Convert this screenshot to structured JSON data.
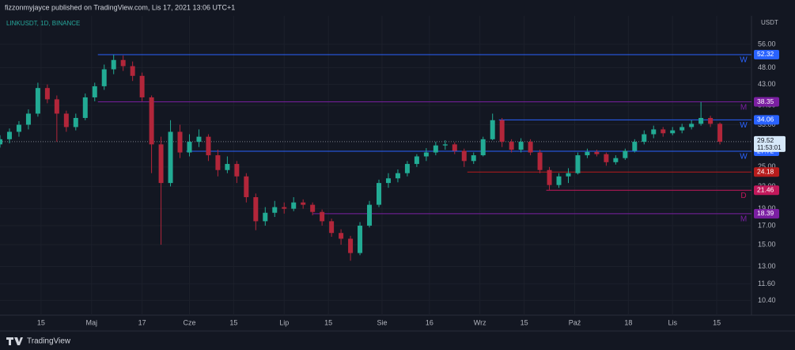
{
  "header": "fizzonmyjayce published on TradingView.com, Lis 17, 2021 13:06 UTC+1",
  "brand": "TradingView",
  "chart_data": {
    "type": "candlestick",
    "symbol": "LINKUSDT, 1D, BINANCE",
    "currency": "USDT",
    "log_scale": true,
    "grid": true,
    "up_color": "#22ab94",
    "down_color": "#b2263a",
    "xlim": [
      1,
      239
    ],
    "ylim": [
      9.44,
      67.5
    ],
    "xticks": [
      {
        "value": 14,
        "label": "15"
      },
      {
        "value": 30,
        "label": "Maj"
      },
      {
        "value": 46,
        "label": "17"
      },
      {
        "value": 61,
        "label": "Cze"
      },
      {
        "value": 75,
        "label": "15"
      },
      {
        "value": 91,
        "label": "Lip"
      },
      {
        "value": 105,
        "label": "15"
      },
      {
        "value": 122,
        "label": "Sie"
      },
      {
        "value": 137,
        "label": "16"
      },
      {
        "value": 153,
        "label": "Wrz"
      },
      {
        "value": 167,
        "label": "15"
      },
      {
        "value": 183,
        "label": "Paź"
      },
      {
        "value": 200,
        "label": "18"
      },
      {
        "value": 214,
        "label": "Lis"
      },
      {
        "value": 228,
        "label": "15"
      }
    ],
    "yticks": [
      {
        "value": 56,
        "label": "56.00"
      },
      {
        "value": 48,
        "label": "48.00"
      },
      {
        "value": 43,
        "label": "43.00"
      },
      {
        "value": 37.5,
        "label": "37.50"
      },
      {
        "value": 33,
        "label": "33.00"
      },
      {
        "value": 25,
        "label": "25.00"
      },
      {
        "value": 22,
        "label": "22.00"
      },
      {
        "value": 19,
        "label": "19.00"
      },
      {
        "value": 17,
        "label": "17.00"
      },
      {
        "value": 15,
        "label": "15.00"
      },
      {
        "value": 13,
        "label": "13.00"
      },
      {
        "value": 11.6,
        "label": "11.60"
      },
      {
        "value": 10.4,
        "label": "10.40"
      }
    ],
    "candles": [
      {
        "x": 1,
        "open": 29.0,
        "high": 30.8,
        "low": 28.4,
        "close": 30.0
      },
      {
        "x": 4,
        "open": 30.0,
        "high": 32.2,
        "low": 29.2,
        "close": 31.5
      },
      {
        "x": 7,
        "open": 31.5,
        "high": 33.8,
        "low": 30.5,
        "close": 33.0
      },
      {
        "x": 10,
        "open": 33.0,
        "high": 36.5,
        "low": 32.0,
        "close": 35.5
      },
      {
        "x": 13,
        "open": 35.5,
        "high": 43.5,
        "low": 34.8,
        "close": 42.0
      },
      {
        "x": 16,
        "open": 42.0,
        "high": 43.0,
        "low": 38.0,
        "close": 39.0
      },
      {
        "x": 19,
        "open": 39.0,
        "high": 40.0,
        "low": 29.5,
        "close": 35.5
      },
      {
        "x": 22,
        "open": 35.5,
        "high": 36.2,
        "low": 31.5,
        "close": 32.5
      },
      {
        "x": 25,
        "open": 32.5,
        "high": 35.5,
        "low": 31.8,
        "close": 34.5
      },
      {
        "x": 28,
        "open": 34.5,
        "high": 40.5,
        "low": 34.0,
        "close": 39.5
      },
      {
        "x": 31,
        "open": 39.5,
        "high": 43.5,
        "low": 38.5,
        "close": 42.5
      },
      {
        "x": 34,
        "open": 42.5,
        "high": 49.0,
        "low": 41.5,
        "close": 47.5
      },
      {
        "x": 37,
        "open": 47.5,
        "high": 52.3,
        "low": 46.0,
        "close": 50.5
      },
      {
        "x": 40,
        "open": 50.5,
        "high": 52.0,
        "low": 47.0,
        "close": 48.5
      },
      {
        "x": 43,
        "open": 48.5,
        "high": 50.0,
        "low": 44.0,
        "close": 45.5
      },
      {
        "x": 46,
        "open": 45.5,
        "high": 46.5,
        "low": 38.5,
        "close": 39.5
      },
      {
        "x": 49,
        "open": 39.5,
        "high": 40.0,
        "low": 24.0,
        "close": 29.0
      },
      {
        "x": 52,
        "open": 29.0,
        "high": 30.5,
        "low": 15.0,
        "close": 22.5
      },
      {
        "x": 55,
        "open": 22.5,
        "high": 34.0,
        "low": 22.0,
        "close": 31.5
      },
      {
        "x": 58,
        "open": 31.5,
        "high": 33.0,
        "low": 26.5,
        "close": 27.5
      },
      {
        "x": 61,
        "open": 27.5,
        "high": 31.0,
        "low": 26.8,
        "close": 29.5
      },
      {
        "x": 64,
        "open": 29.5,
        "high": 32.0,
        "low": 28.5,
        "close": 30.5
      },
      {
        "x": 67,
        "open": 30.5,
        "high": 31.0,
        "low": 26.0,
        "close": 27.0
      },
      {
        "x": 70,
        "open": 27.0,
        "high": 28.0,
        "low": 23.5,
        "close": 24.5
      },
      {
        "x": 73,
        "open": 24.5,
        "high": 26.8,
        "low": 24.0,
        "close": 25.5
      },
      {
        "x": 76,
        "open": 25.5,
        "high": 26.0,
        "low": 22.5,
        "close": 23.5
      },
      {
        "x": 79,
        "open": 23.5,
        "high": 24.0,
        "low": 19.8,
        "close": 20.5
      },
      {
        "x": 82,
        "open": 20.5,
        "high": 21.0,
        "low": 16.5,
        "close": 17.5
      },
      {
        "x": 85,
        "open": 17.5,
        "high": 19.2,
        "low": 17.0,
        "close": 18.5
      },
      {
        "x": 88,
        "open": 18.5,
        "high": 20.0,
        "low": 18.0,
        "close": 19.2
      },
      {
        "x": 91,
        "open": 19.2,
        "high": 19.8,
        "low": 18.4,
        "close": 19.0
      },
      {
        "x": 94,
        "open": 19.0,
        "high": 20.5,
        "low": 18.7,
        "close": 19.8
      },
      {
        "x": 97,
        "open": 19.8,
        "high": 20.2,
        "low": 19.0,
        "close": 19.5
      },
      {
        "x": 100,
        "open": 19.5,
        "high": 19.8,
        "low": 18.2,
        "close": 18.6
      },
      {
        "x": 103,
        "open": 18.6,
        "high": 18.9,
        "low": 17.0,
        "close": 17.5
      },
      {
        "x": 106,
        "open": 17.5,
        "high": 17.8,
        "low": 15.8,
        "close": 16.2
      },
      {
        "x": 109,
        "open": 16.2,
        "high": 16.6,
        "low": 15.0,
        "close": 15.6
      },
      {
        "x": 112,
        "open": 15.6,
        "high": 15.9,
        "low": 13.5,
        "close": 14.2
      },
      {
        "x": 115,
        "open": 14.2,
        "high": 17.4,
        "low": 14.0,
        "close": 17.0
      },
      {
        "x": 118,
        "open": 17.0,
        "high": 20.0,
        "low": 16.8,
        "close": 19.5
      },
      {
        "x": 121,
        "open": 19.5,
        "high": 23.0,
        "low": 19.2,
        "close": 22.5
      },
      {
        "x": 124,
        "open": 22.5,
        "high": 24.0,
        "low": 21.8,
        "close": 23.2
      },
      {
        "x": 127,
        "open": 23.2,
        "high": 24.6,
        "low": 22.6,
        "close": 24.0
      },
      {
        "x": 130,
        "open": 24.0,
        "high": 26.0,
        "low": 23.5,
        "close": 25.5
      },
      {
        "x": 133,
        "open": 25.5,
        "high": 27.2,
        "low": 25.0,
        "close": 26.8
      },
      {
        "x": 136,
        "open": 26.8,
        "high": 28.3,
        "low": 26.0,
        "close": 27.5
      },
      {
        "x": 139,
        "open": 27.5,
        "high": 29.5,
        "low": 27.0,
        "close": 28.8
      },
      {
        "x": 142,
        "open": 28.8,
        "high": 29.8,
        "low": 28.0,
        "close": 29.0
      },
      {
        "x": 145,
        "open": 29.0,
        "high": 29.4,
        "low": 27.2,
        "close": 27.8
      },
      {
        "x": 148,
        "open": 27.8,
        "high": 28.2,
        "low": 25.0,
        "close": 26.0
      },
      {
        "x": 151,
        "open": 26.0,
        "high": 27.5,
        "low": 25.5,
        "close": 27.0
      },
      {
        "x": 154,
        "open": 27.0,
        "high": 30.5,
        "low": 26.8,
        "close": 30.0
      },
      {
        "x": 157,
        "open": 30.0,
        "high": 35.5,
        "low": 29.8,
        "close": 34.0
      },
      {
        "x": 160,
        "open": 34.0,
        "high": 34.5,
        "low": 28.5,
        "close": 29.5
      },
      {
        "x": 163,
        "open": 29.5,
        "high": 30.0,
        "low": 27.5,
        "close": 28.0
      },
      {
        "x": 166,
        "open": 28.0,
        "high": 30.2,
        "low": 27.5,
        "close": 29.5
      },
      {
        "x": 169,
        "open": 29.5,
        "high": 30.0,
        "low": 27.0,
        "close": 27.5
      },
      {
        "x": 172,
        "open": 27.5,
        "high": 28.0,
        "low": 24.0,
        "close": 24.5
      },
      {
        "x": 175,
        "open": 24.5,
        "high": 25.0,
        "low": 21.5,
        "close": 22.2
      },
      {
        "x": 178,
        "open": 22.2,
        "high": 24.0,
        "low": 21.8,
        "close": 23.5
      },
      {
        "x": 181,
        "open": 23.5,
        "high": 24.8,
        "low": 22.5,
        "close": 24.0
      },
      {
        "x": 184,
        "open": 24.0,
        "high": 27.5,
        "low": 23.8,
        "close": 27.0
      },
      {
        "x": 187,
        "open": 27.0,
        "high": 28.2,
        "low": 26.5,
        "close": 27.6
      },
      {
        "x": 190,
        "open": 27.6,
        "high": 28.0,
        "low": 26.8,
        "close": 27.2
      },
      {
        "x": 193,
        "open": 27.2,
        "high": 27.5,
        "low": 25.2,
        "close": 25.8
      },
      {
        "x": 196,
        "open": 25.8,
        "high": 27.0,
        "low": 25.4,
        "close": 26.5
      },
      {
        "x": 199,
        "open": 26.5,
        "high": 28.2,
        "low": 26.2,
        "close": 27.8
      },
      {
        "x": 202,
        "open": 27.8,
        "high": 30.0,
        "low": 27.5,
        "close": 29.5
      },
      {
        "x": 205,
        "open": 29.5,
        "high": 31.8,
        "low": 29.0,
        "close": 31.0
      },
      {
        "x": 208,
        "open": 31.0,
        "high": 32.8,
        "low": 30.2,
        "close": 32.0
      },
      {
        "x": 211,
        "open": 32.0,
        "high": 32.5,
        "low": 30.5,
        "close": 31.2
      },
      {
        "x": 214,
        "open": 31.2,
        "high": 32.5,
        "low": 30.8,
        "close": 31.8
      },
      {
        "x": 217,
        "open": 31.8,
        "high": 33.2,
        "low": 31.2,
        "close": 32.5
      },
      {
        "x": 220,
        "open": 32.5,
        "high": 34.0,
        "low": 32.0,
        "close": 33.2
      },
      {
        "x": 223,
        "open": 33.2,
        "high": 38.3,
        "low": 32.8,
        "close": 34.5
      },
      {
        "x": 226,
        "open": 34.5,
        "high": 35.0,
        "low": 32.5,
        "close": 33.2
      },
      {
        "x": 229,
        "open": 33.2,
        "high": 33.5,
        "low": 29.0,
        "close": 29.52
      }
    ],
    "levels": [
      {
        "value": 52.32,
        "from": 32,
        "color": "#2962ff",
        "tag": "W"
      },
      {
        "value": 38.35,
        "from": 32,
        "color": "#7b1fa2",
        "tag": "M"
      },
      {
        "value": 34.06,
        "from": 159,
        "color": "#2962ff",
        "tag": "W"
      },
      {
        "value": 27.72,
        "from": 60,
        "color": "#2962ff",
        "tag": "W"
      },
      {
        "value": 24.18,
        "from": 149,
        "color": "#b71c1c"
      },
      {
        "value": 21.46,
        "from": 174,
        "color": "#c2185b",
        "tag": "D"
      },
      {
        "value": 18.39,
        "from": 100,
        "color": "#7b1fa2",
        "tag": "M"
      }
    ],
    "last_price": 29.52,
    "countdown": "11:53:01"
  }
}
